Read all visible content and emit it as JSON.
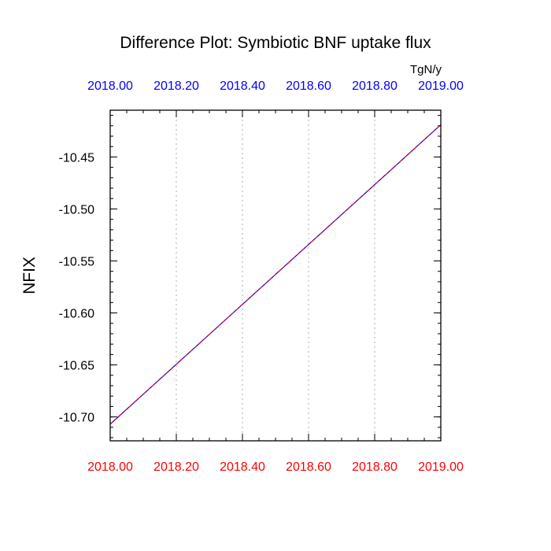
{
  "chart_data": {
    "type": "line",
    "title": "Difference Plot: Symbiotic BNF uptake flux",
    "units": "TgN/y",
    "ylabel": "NFIX",
    "xlabel": "",
    "xlim": [
      2018.0,
      2019.0
    ],
    "ylim": [
      -10.723,
      -10.405
    ],
    "grid": "vertical dotted at major x ticks",
    "x_ticks": [
      2018.0,
      2018.2,
      2018.4,
      2018.6,
      2018.8,
      2019.0
    ],
    "x_tick_labels": [
      "2018.00",
      "2018.20",
      "2018.40",
      "2018.60",
      "2018.80",
      "2019.00"
    ],
    "y_ticks": [
      -10.45,
      -10.5,
      -10.55,
      -10.6,
      -10.65,
      -10.7
    ],
    "y_tick_labels": [
      "-10.45",
      "-10.50",
      "-10.55",
      "-10.60",
      "-10.65",
      "-10.70"
    ],
    "colors": {
      "top_axis_labels": "#0000ff",
      "bottom_axis_labels": "#ff0000",
      "line_primary": "#0000ff",
      "line_overlay": "#ff0000",
      "grid": "#bbbbbb"
    },
    "series": [
      {
        "x": [
          2018.0,
          2019.0
        ],
        "y": [
          -10.707,
          -10.419
        ]
      }
    ]
  }
}
